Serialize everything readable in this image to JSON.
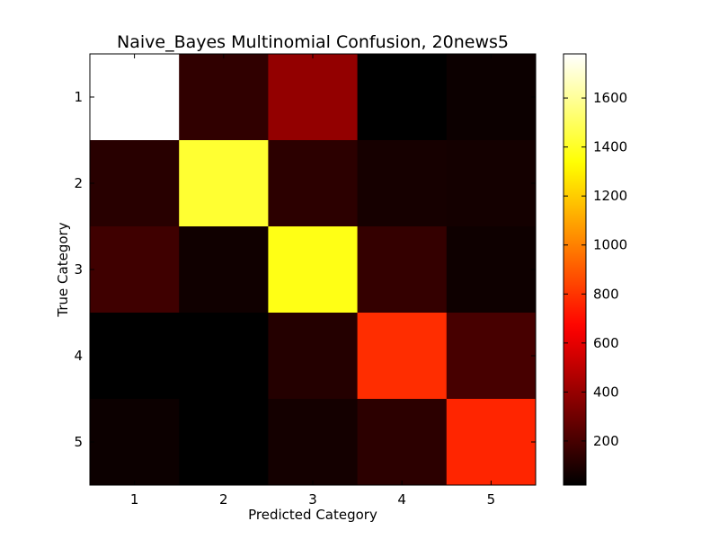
{
  "chart_data": {
    "type": "heatmap",
    "title": "Naive_Bayes Multinomial Confusion, 20news5",
    "xlabel": "Predicted Category",
    "ylabel": "True Category",
    "x_categories": [
      "1",
      "2",
      "3",
      "4",
      "5"
    ],
    "y_categories": [
      "1",
      "2",
      "3",
      "4",
      "5"
    ],
    "values": [
      [
        1780,
        140,
        390,
        20,
        50
      ],
      [
        120,
        1420,
        130,
        75,
        70
      ],
      [
        180,
        60,
        1370,
        150,
        55
      ],
      [
        20,
        15,
        110,
        780,
        200
      ],
      [
        50,
        20,
        70,
        130,
        760
      ]
    ],
    "colormap": "hot",
    "color_range": [
      20,
      1780
    ],
    "colorbar_ticks": [
      "200",
      "400",
      "600",
      "800",
      "1000",
      "1200",
      "1400",
      "1600"
    ],
    "colorbar_tick_values": [
      200,
      400,
      600,
      800,
      1000,
      1200,
      1400,
      1600
    ]
  }
}
